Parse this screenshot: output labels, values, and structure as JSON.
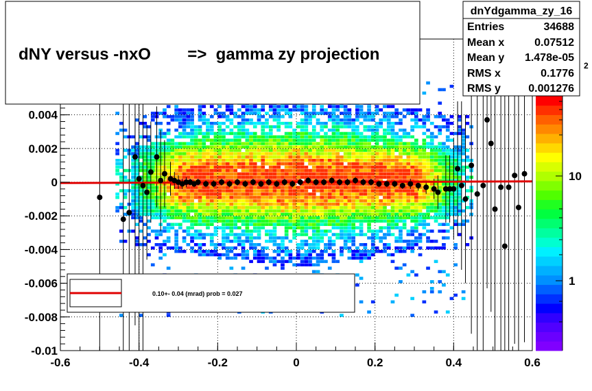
{
  "chart_data": {
    "type": "heatmap",
    "title": "dNY versus -nxO        =>  gamma zy projection",
    "xlim": [
      -0.6,
      0.6
    ],
    "ylim": [
      -0.01,
      0.0085
    ],
    "x_ticks": [
      -0.6,
      -0.4,
      -0.2,
      0,
      0.2,
      0.4,
      0.6
    ],
    "x_tick_labels": [
      "-0.6",
      "-0.4",
      "-0.2",
      "0",
      "0.2",
      "0.4",
      "0.6"
    ],
    "y_ticks": [
      -0.01,
      -0.008,
      -0.006,
      -0.004,
      -0.002,
      0,
      0.002,
      0.004
    ],
    "y_tick_labels": [
      "-0.01",
      "-0.008",
      "-0.006",
      "-0.004",
      "-0.002",
      "0",
      "0.002",
      "0.004"
    ],
    "grid": true,
    "stats": {
      "name": "dnYdgamma_zy_16",
      "entries_label": "Entries",
      "entries": "34688",
      "mean_x_label": "Mean x",
      "mean_x": "0.07512",
      "mean_y_label": "Mean y",
      "mean_y": "1.478e-05",
      "rms_x_label": "RMS x",
      "rms_x": "0.1776",
      "rms_y_label": "RMS y",
      "rms_y": "0.001276"
    },
    "colorbar": {
      "scale": "log",
      "labels": [
        "1",
        "10"
      ],
      "exponent_label": "2",
      "colors": [
        "#8000ff",
        "#6a00ff",
        "#5000ff",
        "#3000ff",
        "#0000ff",
        "#0030ff",
        "#0060ff",
        "#0090ff",
        "#00b0ff",
        "#00d0ff",
        "#00f0ff",
        "#00ffd0",
        "#00ffa0",
        "#00ff70",
        "#00ff40",
        "#20ff20",
        "#50ff00",
        "#80ff00",
        "#b0ff00",
        "#d8ff00",
        "#ffff00",
        "#ffd800",
        "#ffb000",
        "#ff8800",
        "#ff6000",
        "#ff3000",
        "#ff0000"
      ]
    },
    "profile_points": [
      {
        "x": -0.5,
        "y": -0.0009,
        "err": 0.01
      },
      {
        "x": -0.44,
        "y": -0.0022,
        "err": 0.01
      },
      {
        "x": -0.425,
        "y": -0.0018,
        "err": 0.01
      },
      {
        "x": -0.41,
        "y": 0.0015,
        "err": 0.01
      },
      {
        "x": -0.4,
        "y": 0.0002,
        "err": 0.01
      },
      {
        "x": -0.39,
        "y": -0.0002,
        "err": 0.01
      },
      {
        "x": -0.38,
        "y": -0.0006,
        "err": 0.004
      },
      {
        "x": -0.37,
        "y": 0.0006,
        "err": 0.003
      },
      {
        "x": -0.355,
        "y": 0.0015,
        "err": 0.003
      },
      {
        "x": -0.345,
        "y": 0.0001,
        "err": 0.003
      },
      {
        "x": -0.335,
        "y": 0.0005,
        "err": 0.002
      },
      {
        "x": -0.32,
        "y": 0.0002,
        "err": 0.001
      },
      {
        "x": -0.31,
        "y": 0.0001,
        "err": 0.0005
      },
      {
        "x": -0.3,
        "y": 0.0,
        "err": 0.0004
      },
      {
        "x": -0.29,
        "y": -0.0001,
        "err": 0.0003
      },
      {
        "x": -0.28,
        "y": 0.0,
        "err": 0.0003
      },
      {
        "x": -0.27,
        "y": 0.0,
        "err": 0.0002
      },
      {
        "x": -0.26,
        "y": -0.0001,
        "err": 0.0002
      },
      {
        "x": -0.25,
        "y": 0.0,
        "err": 0.0002
      },
      {
        "x": -0.23,
        "y": -0.0001,
        "err": 0.0002
      },
      {
        "x": -0.21,
        "y": -0.0001,
        "err": 0.0002
      },
      {
        "x": -0.19,
        "y": 0.0,
        "err": 0.0002
      },
      {
        "x": -0.17,
        "y": -0.0001,
        "err": 0.0002
      },
      {
        "x": -0.15,
        "y": 0.0,
        "err": 0.0002
      },
      {
        "x": -0.13,
        "y": -0.0001,
        "err": 0.0002
      },
      {
        "x": -0.11,
        "y": 0.0,
        "err": 0.0002
      },
      {
        "x": -0.09,
        "y": -0.0001,
        "err": 0.0002
      },
      {
        "x": -0.07,
        "y": 0.0,
        "err": 0.0002
      },
      {
        "x": -0.05,
        "y": -0.0001,
        "err": 0.0002
      },
      {
        "x": -0.03,
        "y": 0.0,
        "err": 0.0002
      },
      {
        "x": -0.01,
        "y": -0.0001,
        "err": 0.0002
      },
      {
        "x": 0.01,
        "y": 0.0,
        "err": 0.0002
      },
      {
        "x": 0.03,
        "y": 0.0001,
        "err": 0.0002
      },
      {
        "x": 0.05,
        "y": 0.0,
        "err": 0.0002
      },
      {
        "x": 0.07,
        "y": 0.0,
        "err": 0.0002
      },
      {
        "x": 0.09,
        "y": 0.0001,
        "err": 0.0002
      },
      {
        "x": 0.11,
        "y": 0.0,
        "err": 0.0002
      },
      {
        "x": 0.13,
        "y": 0.0,
        "err": 0.0002
      },
      {
        "x": 0.15,
        "y": 0.0001,
        "err": 0.0002
      },
      {
        "x": 0.17,
        "y": 0.0,
        "err": 0.0002
      },
      {
        "x": 0.19,
        "y": 0.0,
        "err": 0.0002
      },
      {
        "x": 0.21,
        "y": -0.0001,
        "err": 0.0002
      },
      {
        "x": 0.23,
        "y": -0.0001,
        "err": 0.0002
      },
      {
        "x": 0.25,
        "y": -0.0001,
        "err": 0.0002
      },
      {
        "x": 0.27,
        "y": -0.0002,
        "err": 0.0002
      },
      {
        "x": 0.29,
        "y": -0.0001,
        "err": 0.0003
      },
      {
        "x": 0.31,
        "y": -0.0002,
        "err": 0.0003
      },
      {
        "x": 0.33,
        "y": -0.0003,
        "err": 0.0004
      },
      {
        "x": 0.35,
        "y": -0.0004,
        "err": 0.0006
      },
      {
        "x": 0.36,
        "y": -0.0006,
        "err": 0.001
      },
      {
        "x": 0.38,
        "y": -0.0004,
        "err": 0.002
      },
      {
        "x": 0.39,
        "y": -0.0004,
        "err": 0.002
      },
      {
        "x": 0.4,
        "y": -0.0004,
        "err": 0.003
      },
      {
        "x": 0.41,
        "y": 0.0008,
        "err": 0.004
      },
      {
        "x": 0.42,
        "y": -0.0002,
        "err": 0.005
      },
      {
        "x": 0.43,
        "y": -0.001,
        "err": 0.005
      },
      {
        "x": 0.445,
        "y": 0.001,
        "err": 0.01
      },
      {
        "x": 0.46,
        "y": -0.0007,
        "err": 0.01
      },
      {
        "x": 0.475,
        "y": -0.0002,
        "err": 0.01
      },
      {
        "x": 0.485,
        "y": 0.0037,
        "err": 0.01
      },
      {
        "x": 0.495,
        "y": 0.0023,
        "err": 0.01
      },
      {
        "x": 0.505,
        "y": -0.0016,
        "err": 0.01
      },
      {
        "x": 0.52,
        "y": -0.0003,
        "err": 0.01
      },
      {
        "x": 0.53,
        "y": -0.0038,
        "err": 0.01
      },
      {
        "x": 0.54,
        "y": -0.0003,
        "err": 0.01
      },
      {
        "x": 0.555,
        "y": 0.0004,
        "err": 0.01
      },
      {
        "x": 0.565,
        "y": -0.0015,
        "err": 0.01
      },
      {
        "x": 0.58,
        "y": 0.0005,
        "err": 0.01
      }
    ],
    "fit_line": {
      "x": [
        -0.6,
        0.6
      ],
      "y": [
        -5e-05,
        5e-05
      ],
      "color": "#e00000"
    },
    "legend": {
      "placement": "bottom-left",
      "entry_text": "0.10+- 0.04 (mrad) prob = 0.027",
      "line_color": "#e00000"
    }
  }
}
